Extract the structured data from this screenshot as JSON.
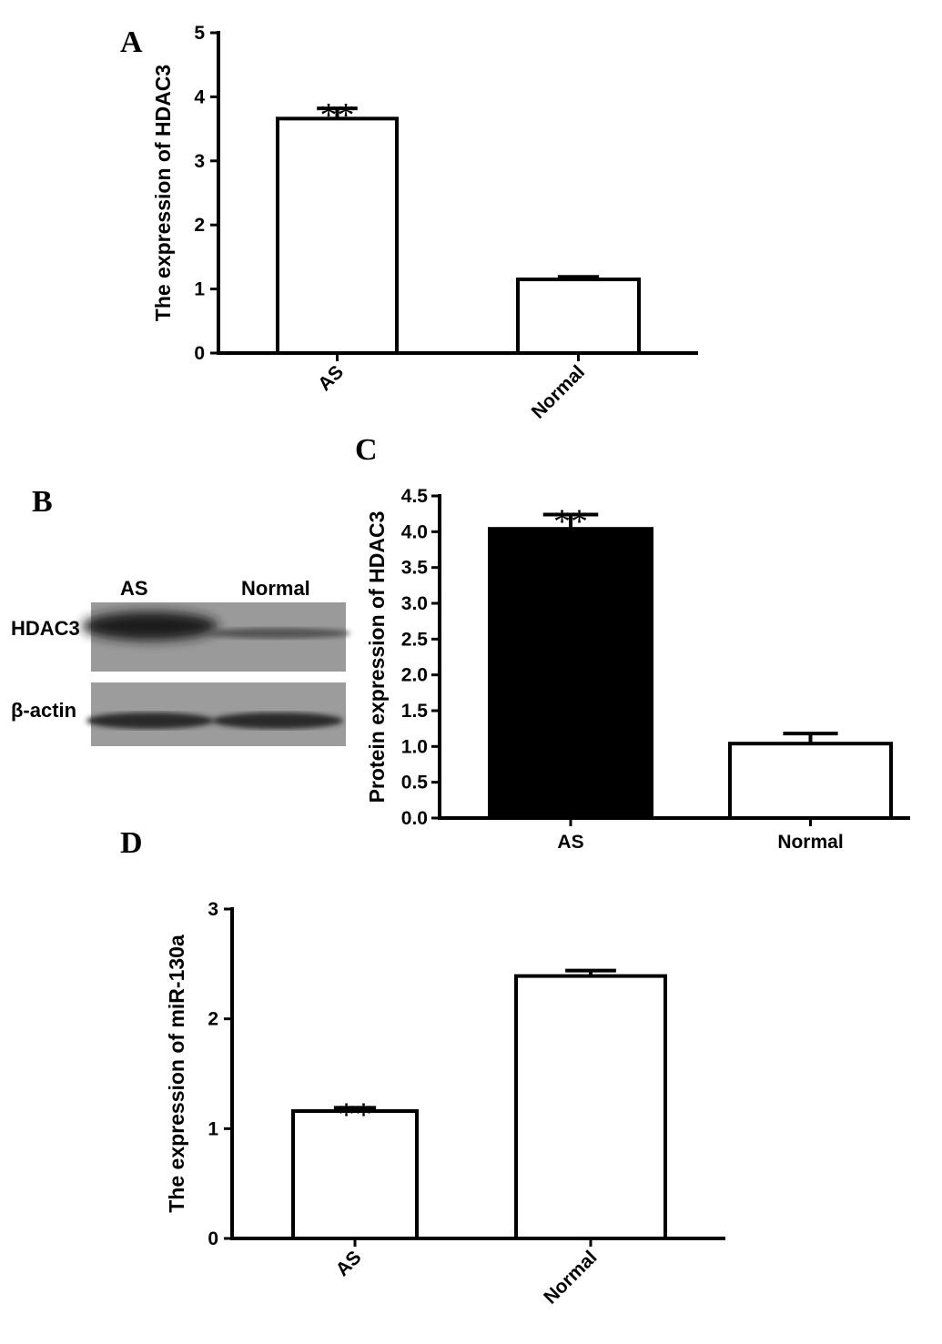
{
  "chart_data": [
    {
      "type": "bar",
      "panel": "A",
      "y_label": "The expression of HDAC3",
      "categories": [
        "AS",
        "Normal"
      ],
      "values": [
        3.66,
        1.15
      ],
      "errors": [
        0.16,
        0.04
      ],
      "colors": [
        "#ffffff",
        "#ffffff"
      ],
      "ylim": [
        0,
        5
      ],
      "yticks": [
        0,
        1,
        2,
        3,
        4,
        5
      ],
      "annotations": [
        {
          "category": "AS",
          "text": "**"
        }
      ]
    },
    {
      "type": "bar",
      "panel": "C",
      "y_label": "Protein expression of HDAC3",
      "categories": [
        "AS",
        "Normal"
      ],
      "values": [
        4.04,
        1.04
      ],
      "errors": [
        0.2,
        0.14
      ],
      "colors": [
        "#000000",
        "#ffffff"
      ],
      "ylim": [
        0,
        4.5
      ],
      "yticks": [
        {
          "value": 0,
          "label": "0.0"
        },
        0.5,
        {
          "value": 1,
          "label": "1.0"
        },
        1.5,
        {
          "value": 2,
          "label": "2.0"
        },
        2.5,
        {
          "value": 3,
          "label": "3.0"
        },
        3.5,
        {
          "value": 4,
          "label": "4.0"
        },
        4.5
      ],
      "annotations": [
        {
          "category": "AS",
          "text": "**"
        }
      ]
    },
    {
      "type": "bar",
      "panel": "D",
      "y_label": "The expression of miR-130a",
      "categories": [
        "AS",
        "Normal"
      ],
      "values": [
        1.16,
        2.39
      ],
      "errors": [
        0.03,
        0.05
      ],
      "colors": [
        "#ffffff",
        "#ffffff"
      ],
      "ylim": [
        0,
        3
      ],
      "yticks": [
        0,
        1,
        2,
        3
      ],
      "annotations": [
        {
          "category": "AS",
          "text": "**"
        }
      ]
    }
  ],
  "blot": {
    "panel": "B",
    "lanes": [
      "AS",
      "Normal"
    ],
    "rows": [
      "HDAC3",
      "β-actin"
    ]
  }
}
